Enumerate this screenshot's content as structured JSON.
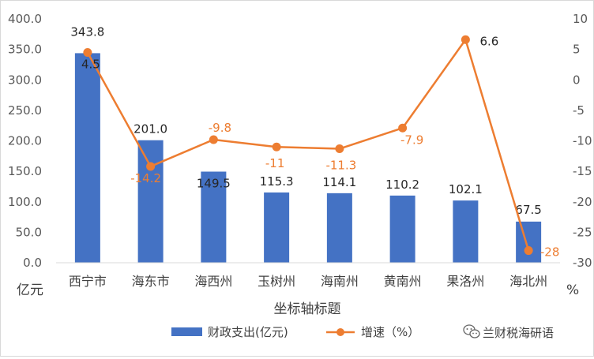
{
  "chart_data": {
    "type": "bar",
    "categories": [
      "西宁市",
      "海东市",
      "海西州",
      "玉树州",
      "海南州",
      "黄南州",
      "果洛州",
      "海北州"
    ],
    "series": [
      {
        "name": "财政支出(亿元)",
        "type": "bar",
        "axis": "left",
        "color": "#4472c4",
        "values": [
          343.8,
          201.0,
          149.5,
          115.3,
          114.1,
          110.2,
          102.1,
          67.5
        ],
        "labels": [
          "343.8",
          "201.0",
          "149.5",
          "115.3",
          "114.1",
          "110.2",
          "102.1",
          "67.5"
        ]
      },
      {
        "name": "增速（%）",
        "type": "line",
        "axis": "right",
        "color": "#ed7d31",
        "values": [
          4.5,
          -14.2,
          -9.8,
          -11,
          -11.3,
          -7.9,
          6.6,
          -28
        ],
        "labels": [
          "4.5",
          "-14.2",
          "-9.8",
          "-11",
          "-11.3",
          "-7.9",
          "6.6",
          "-28"
        ]
      }
    ],
    "xlabel": "坐标轴标题",
    "y_left": {
      "unit": "亿元",
      "range": [
        0,
        400
      ],
      "ticks": [
        "0.0",
        "50.0",
        "100.0",
        "150.0",
        "200.0",
        "250.0",
        "300.0",
        "350.0",
        "400.0"
      ]
    },
    "y_right": {
      "unit": "%",
      "range": [
        -30,
        10
      ],
      "ticks": [
        "-30",
        "-25",
        "-20",
        "-15",
        "-10",
        "-5",
        "0",
        "5",
        "10"
      ]
    },
    "grid": false,
    "legend": "bottom"
  },
  "watermark": {
    "text": "兰财税海研语",
    "icon": "wechat-icon"
  }
}
